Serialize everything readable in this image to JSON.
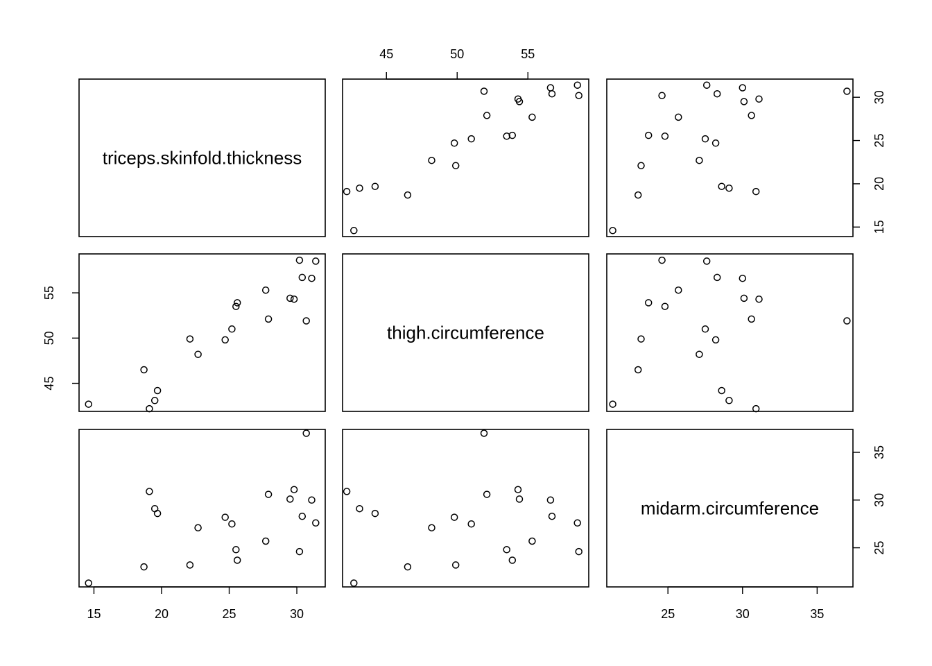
{
  "chart_data": {
    "type": "scatter",
    "subtype": "scatterplot-matrix",
    "variables": [
      "triceps.skinfold.thickness",
      "thigh.circumference",
      "midarm.circumference"
    ],
    "observations": {
      "triceps.skinfold.thickness": [
        19.5,
        24.7,
        30.7,
        29.8,
        19.1,
        25.6,
        31.4,
        27.9,
        22.1,
        25.5,
        31.1,
        30.4,
        18.7,
        19.7,
        14.6,
        29.5,
        27.7,
        30.2,
        22.7,
        25.2
      ],
      "thigh.circumference": [
        43.1,
        49.8,
        51.9,
        54.3,
        42.2,
        53.9,
        58.5,
        52.1,
        49.9,
        53.5,
        56.6,
        56.7,
        46.5,
        44.2,
        42.7,
        54.4,
        55.3,
        58.6,
        48.2,
        51.0
      ],
      "midarm.circumference": [
        29.1,
        28.2,
        37.0,
        31.1,
        30.9,
        23.7,
        27.6,
        30.6,
        23.2,
        24.8,
        30.0,
        28.3,
        23.0,
        28.6,
        21.3,
        30.1,
        25.7,
        24.6,
        27.1,
        27.5
      ]
    },
    "axis_ranges": {
      "triceps.skinfold.thickness": [
        13.9,
        32.1
      ],
      "thigh.circumference": [
        41.9,
        59.3
      ],
      "midarm.circumference": [
        20.9,
        37.4
      ]
    },
    "ticks": {
      "triceps.skinfold.thickness": [
        15,
        20,
        25,
        30
      ],
      "thigh.circumference": [
        45,
        50,
        55
      ],
      "midarm.circumference": [
        25,
        30,
        35
      ]
    },
    "tick_labels": {
      "triceps.skinfold.thickness": [
        "15",
        "20",
        "25",
        "30"
      ],
      "thigh.circumference": [
        "45",
        "50",
        "55"
      ],
      "midarm.circumference": [
        "25",
        "30",
        "35"
      ]
    },
    "grid": false,
    "legend": "none",
    "title": "",
    "marker": "open-circle",
    "colors": {
      "points": "#000000",
      "frame": "#000000",
      "background": "#ffffff"
    }
  }
}
